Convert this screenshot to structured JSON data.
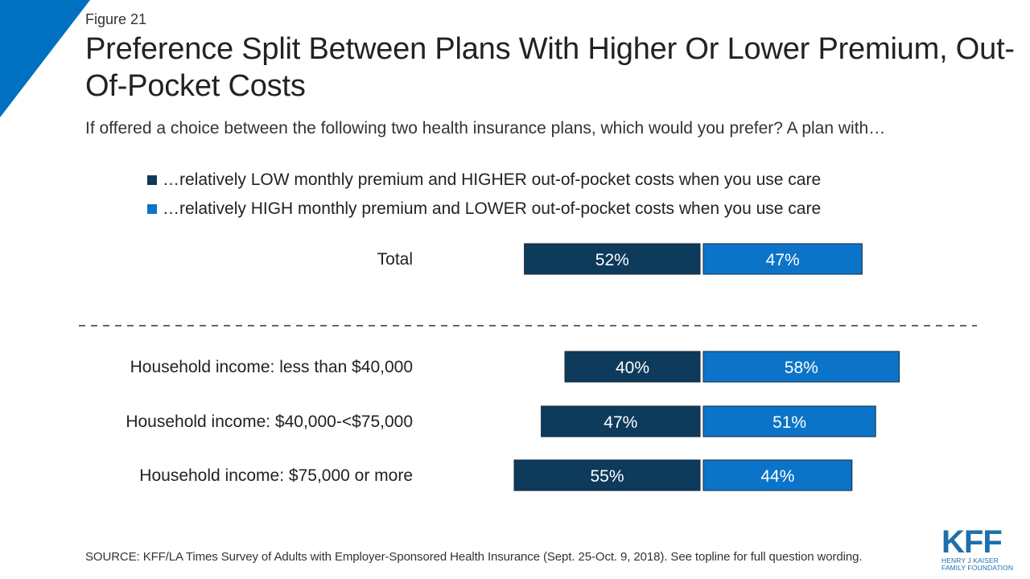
{
  "figure_label": "Figure 21",
  "title": "Preference Split Between Plans With Higher Or Lower Premium, Out-Of-Pocket Costs",
  "subtitle": "If offered a choice between the following two health insurance plans, which would you prefer? A plan with…",
  "source": "SOURCE: KFF/LA Times Survey of Adults with Employer-Sponsored Health Insurance  (Sept. 25-Oct. 9, 2018). See topline for full question wording.",
  "logo": {
    "main": "KFF",
    "line1": "HENRY J KAISER",
    "line2": "FAMILY FOUNDATION"
  },
  "colors": {
    "accent_corner": "#0070c0",
    "dark_series": "#0e3a5c",
    "light_series": "#0b74c8",
    "divider": "#333333",
    "bar_border": "#1a2a3a"
  },
  "chart_data": {
    "type": "bar",
    "orientation": "horizontal-diverging",
    "categories": [
      "Total",
      "Household income: less than $40,000",
      "Household income: $40,000-<$75,000",
      "Household income: $75,000 or more"
    ],
    "series": [
      {
        "name": "…relatively LOW monthly premium and HIGHER out-of-pocket costs when you use care",
        "values": [
          52,
          40,
          47,
          55
        ],
        "labels": [
          "52%",
          "40%",
          "47%",
          "55%"
        ]
      },
      {
        "name": "…relatively HIGH monthly premium and LOWER out-of-pocket costs when you use care",
        "values": [
          47,
          58,
          51,
          44
        ],
        "labels": [
          "47%",
          "58%",
          "51%",
          "44%"
        ]
      }
    ],
    "unit": "%",
    "divider_after_category": 0,
    "legend": "top",
    "grid": false
  }
}
